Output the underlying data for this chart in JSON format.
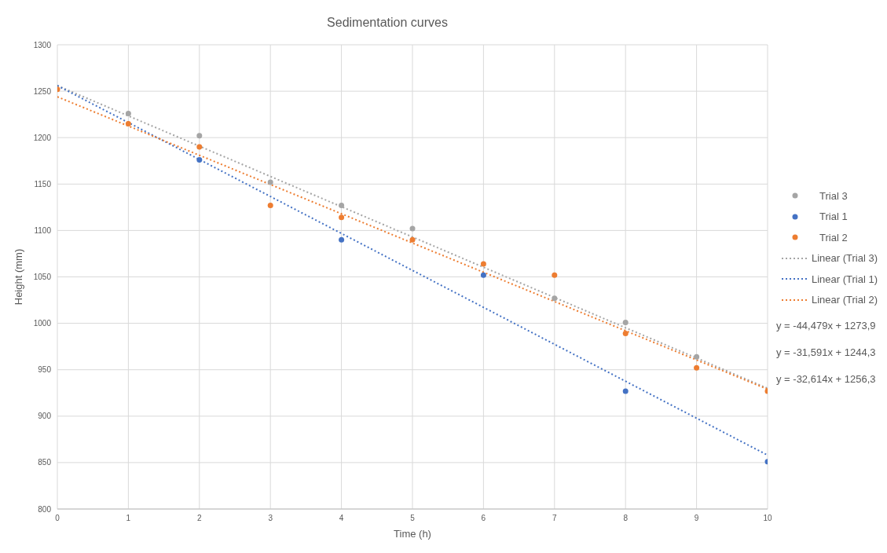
{
  "chart_data": {
    "type": "scatter",
    "title": "Sedimentation curves",
    "xlabel": "Time (h)",
    "ylabel": "Height (mm)",
    "xlim": [
      0,
      10
    ],
    "xticks": [
      0,
      1,
      2,
      3,
      4,
      5,
      6,
      7,
      8,
      9,
      10
    ],
    "ylim": [
      800,
      1300
    ],
    "yticks": [
      800,
      850,
      900,
      950,
      1000,
      1050,
      1100,
      1150,
      1200,
      1250,
      1300
    ],
    "grid": true,
    "legend": "right",
    "line_style": "dotted",
    "series": [
      {
        "name": "Trial 3",
        "color": "#a5a5a5",
        "marker": "circle",
        "x": [
          1,
          2,
          3,
          4,
          5,
          7,
          8,
          9
        ],
        "values": [
          1226,
          1202,
          1152,
          1127,
          1102,
          1027,
          1001,
          964
        ]
      },
      {
        "name": "Trial 1",
        "color": "#4472c4",
        "marker": "circle",
        "x": [
          2,
          4,
          6,
          8,
          10
        ],
        "values": [
          1176,
          1090,
          1052,
          927,
          851
        ]
      },
      {
        "name": "Trial 2",
        "color": "#ed7d31",
        "marker": "circle",
        "x": [
          0,
          1,
          2,
          3,
          4,
          5,
          6,
          7,
          8,
          9,
          10
        ],
        "values": [
          1252,
          1215,
          1190,
          1127,
          1114,
          1090,
          1064,
          1052,
          989,
          952,
          927
        ]
      },
      {
        "name": "Linear (Trial 3)",
        "type": "line",
        "color": "#a5a5a5",
        "marker": "none",
        "x": [
          0,
          10
        ],
        "values": [
          1256,
          930
        ]
      },
      {
        "name": "Linear (Trial 1)",
        "type": "line",
        "color": "#4472c4",
        "marker": "none",
        "x": [
          0,
          10
        ],
        "values": [
          1256,
          858
        ]
      },
      {
        "name": "Linear (Trial 2)",
        "type": "line",
        "color": "#ed7d31",
        "marker": "none",
        "x": [
          0,
          10
        ],
        "values": [
          1244,
          929
        ]
      }
    ],
    "annotations": [
      "y = -44,479x + 1273,9",
      "y = -31,591x + 1244,3",
      "y = -32,614x + 1256,3"
    ]
  }
}
